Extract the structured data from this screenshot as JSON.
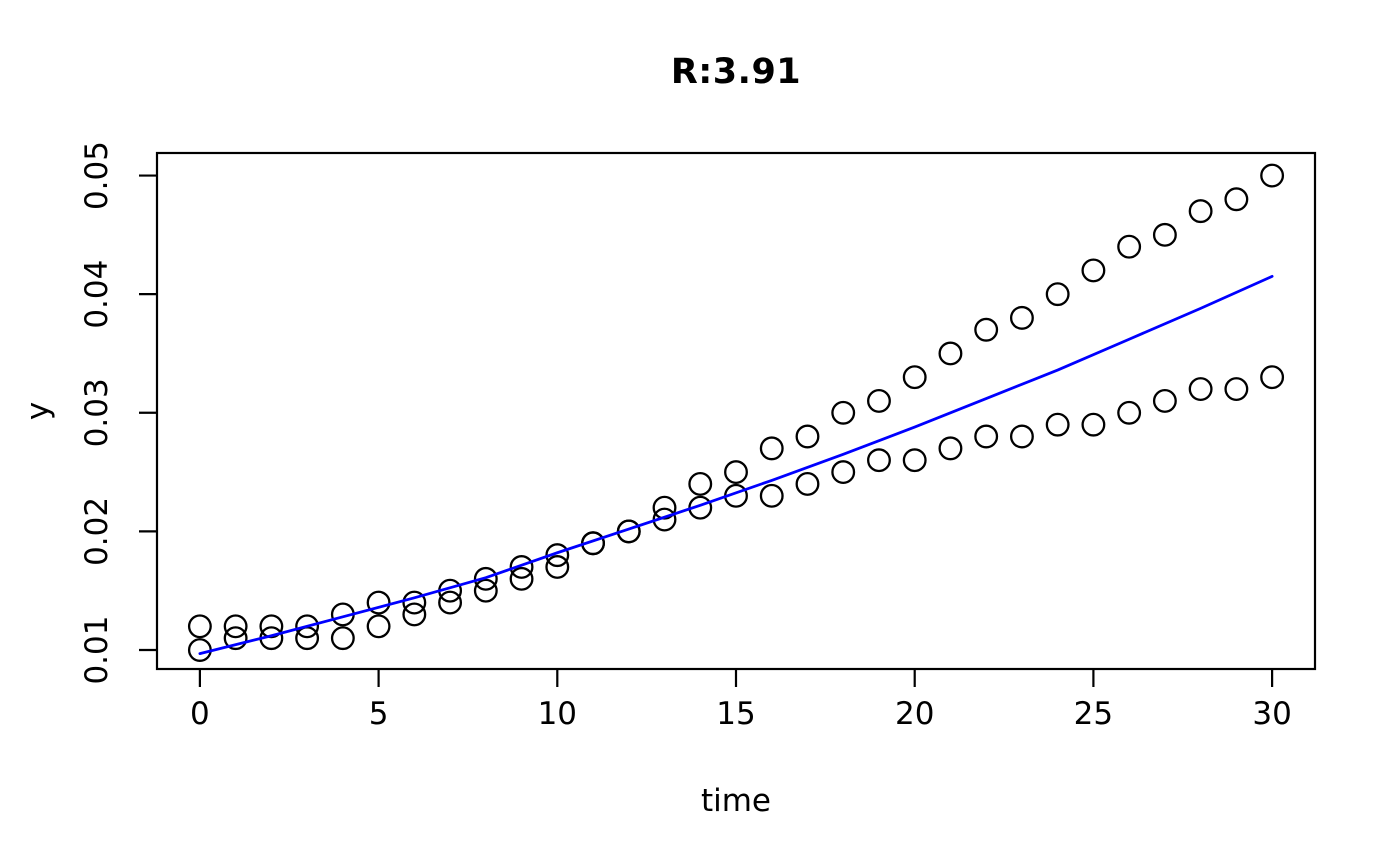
{
  "figure": {
    "title": "R:3.91",
    "xlabel": "time",
    "ylabel": "y"
  },
  "colors": {
    "background": "#ffffff",
    "text": "#000000",
    "marker_stroke": "#000000",
    "fit_line": "#0000ff",
    "axis": "#000000"
  },
  "chart_data": {
    "type": "scatter",
    "title": "R:3.91",
    "xlabel": "time",
    "ylabel": "y",
    "grid": false,
    "legend": null,
    "xlim": [
      -1.2,
      31.2
    ],
    "ylim": [
      0.0084,
      0.0519
    ],
    "x_ticks": [
      0,
      5,
      10,
      15,
      20,
      25,
      30
    ],
    "x_tick_labels": [
      "0",
      "5",
      "10",
      "15",
      "20",
      "25",
      "30"
    ],
    "y_ticks": [
      0.01,
      0.02,
      0.03,
      0.04,
      0.05
    ],
    "y_tick_labels": [
      "0.01",
      "0.02",
      "0.03",
      "0.04",
      "0.05"
    ],
    "x": [
      0,
      1,
      2,
      3,
      4,
      5,
      6,
      7,
      8,
      9,
      10,
      11,
      12,
      13,
      14,
      15,
      16,
      17,
      18,
      19,
      20,
      21,
      22,
      23,
      24,
      25,
      26,
      27,
      28,
      29,
      30
    ],
    "series": [
      {
        "name": "upper-circles",
        "type": "points",
        "marker": "open-circle",
        "color": "#000000",
        "values": [
          0.012,
          0.012,
          0.012,
          0.012,
          0.013,
          0.014,
          0.014,
          0.015,
          0.016,
          0.017,
          0.018,
          0.019,
          0.02,
          0.022,
          0.024,
          0.025,
          0.027,
          0.028,
          0.03,
          0.031,
          0.033,
          0.035,
          0.037,
          0.038,
          0.04,
          0.042,
          0.044,
          0.045,
          0.047,
          0.048,
          0.05
        ]
      },
      {
        "name": "lower-circles",
        "type": "points",
        "marker": "open-circle",
        "color": "#000000",
        "values": [
          0.01,
          0.011,
          0.011,
          0.011,
          0.011,
          0.012,
          0.013,
          0.014,
          0.015,
          0.016,
          0.017,
          0.019,
          0.02,
          0.021,
          0.022,
          0.023,
          0.023,
          0.024,
          0.025,
          0.026,
          0.026,
          0.027,
          0.028,
          0.028,
          0.029,
          0.029,
          0.03,
          0.031,
          0.032,
          0.032,
          0.033
        ]
      },
      {
        "name": "fit-line",
        "type": "line",
        "color": "#0000ff",
        "x": [
          0,
          2,
          4,
          6,
          8,
          10,
          12,
          14,
          16,
          18,
          20,
          22,
          24,
          26,
          28,
          30
        ],
        "values": [
          0.0097,
          0.0112,
          0.0128,
          0.0144,
          0.0161,
          0.0182,
          0.0202,
          0.0222,
          0.0243,
          0.0265,
          0.0288,
          0.0312,
          0.0336,
          0.0362,
          0.0388,
          0.0415
        ]
      }
    ]
  }
}
